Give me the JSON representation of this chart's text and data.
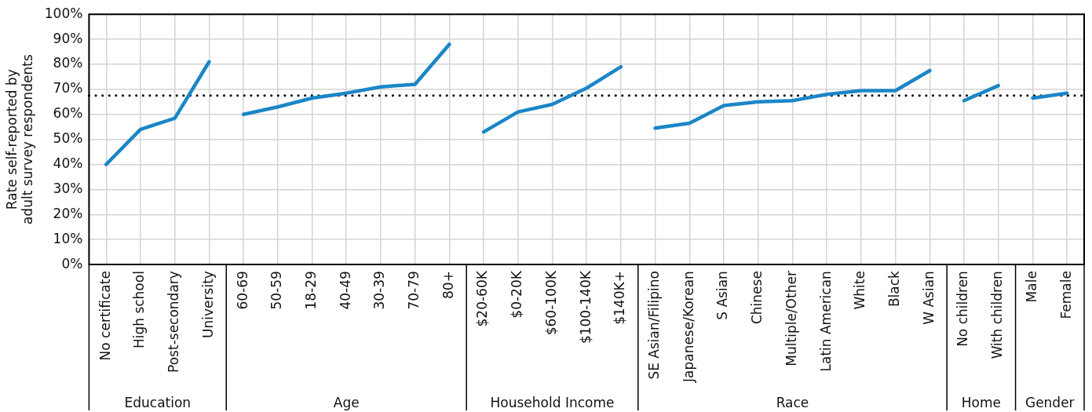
{
  "chart_data": {
    "type": "line",
    "ylabel": "Rate self-reported by adult survey respondents",
    "categories": [
      "No certificate",
      "High school",
      "Post-secondary",
      "University",
      "60-69",
      "50-59",
      "18-29",
      "40-49",
      "30-39",
      "70-79",
      "80+",
      "$20-60K",
      "$0-20K",
      "$60-100K",
      "$100-140K",
      "$140K+",
      "SE Asian/Filipino",
      "Japanese/Korean",
      "S Asian",
      "Chinese",
      "Multiple/Other",
      "Latin American",
      "White",
      "Black",
      "W Asian",
      "No children",
      "With children",
      "Male",
      "Female"
    ],
    "series": [
      {
        "color": "#1b86c6",
        "values": [
          40,
          54,
          58.5,
          81,
          null,
          null,
          null,
          null,
          null,
          null,
          null,
          null,
          null,
          null,
          null,
          null,
          null,
          null,
          null,
          null,
          null,
          null,
          null,
          null,
          null,
          null,
          null,
          null,
          null
        ]
      },
      {
        "color": "#1b86c6",
        "values": [
          null,
          null,
          null,
          null,
          60,
          63,
          66.5,
          68.5,
          71,
          72,
          88,
          null,
          null,
          null,
          null,
          null,
          null,
          null,
          null,
          null,
          null,
          null,
          null,
          null,
          null,
          null,
          null,
          null,
          null
        ]
      },
      {
        "color": "#1b86c6",
        "values": [
          null,
          null,
          null,
          null,
          null,
          null,
          null,
          null,
          null,
          null,
          null,
          53,
          61,
          64,
          70.5,
          79,
          null,
          null,
          null,
          null,
          null,
          null,
          null,
          null,
          null,
          null,
          null,
          null,
          null
        ]
      },
      {
        "color": "#1b86c6",
        "values": [
          null,
          null,
          null,
          null,
          null,
          null,
          null,
          null,
          null,
          null,
          null,
          null,
          null,
          null,
          null,
          null,
          54.5,
          56.5,
          63.5,
          65,
          65.5,
          68,
          69.5,
          69.5,
          77.5,
          null,
          null,
          null,
          null
        ]
      },
      {
        "color": "#1b86c6",
        "values": [
          null,
          null,
          null,
          null,
          null,
          null,
          null,
          null,
          null,
          null,
          null,
          null,
          null,
          null,
          null,
          null,
          null,
          null,
          null,
          null,
          null,
          null,
          null,
          null,
          null,
          65.5,
          71.5,
          null,
          null
        ]
      },
      {
        "color": "#1b86c6",
        "values": [
          null,
          null,
          null,
          null,
          null,
          null,
          null,
          null,
          null,
          null,
          null,
          null,
          null,
          null,
          null,
          null,
          null,
          null,
          null,
          null,
          null,
          null,
          null,
          null,
          null,
          null,
          null,
          66.5,
          68.5
        ]
      }
    ],
    "annotations": [
      "Education",
      "Age",
      "Household Income",
      "Race",
      "Home",
      "Gender"
    ],
    "ylim": [
      0,
      100
    ],
    "yticks": [
      {
        "value": 0,
        "label": "0%"
      },
      {
        "value": 10,
        "label": "10%"
      },
      {
        "value": 20,
        "label": "20%"
      },
      {
        "value": 30,
        "label": "30%"
      },
      {
        "value": 40,
        "label": "40%"
      },
      {
        "value": 50,
        "label": "50%"
      },
      {
        "value": 60,
        "label": "60%"
      },
      {
        "value": 70,
        "label": "70%"
      },
      {
        "value": 80,
        "label": "80%"
      },
      {
        "value": 90,
        "label": "90%"
      },
      {
        "value": 100,
        "label": "100%"
      }
    ],
    "ref_lines": [
      {
        "axis": "y",
        "value": 67.5,
        "color": "#000000",
        "line_style": "dotted"
      }
    ],
    "grid": true,
    "marker": "none",
    "line_style": "solid",
    "legend": false
  }
}
